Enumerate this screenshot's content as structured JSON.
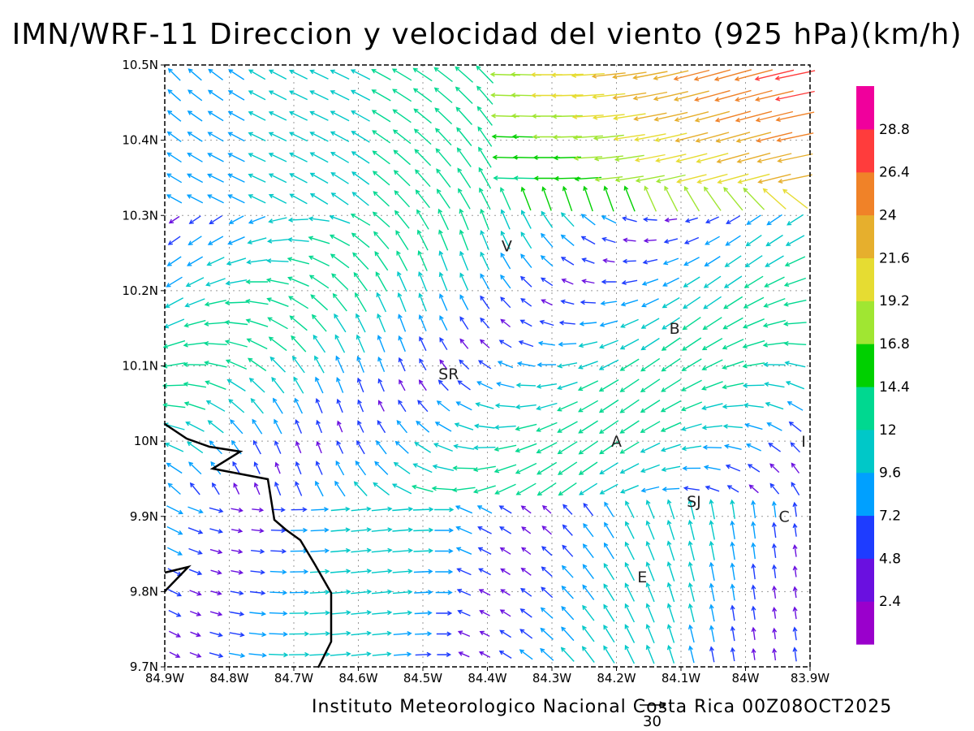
{
  "title": "IMN/WRF-11 Direccion y velocidad del viento (925 hPa)(km/h)",
  "footer": "Instituto Meteorologico Nacional Costa Rica 00Z08OCT2025",
  "reference_vector": {
    "label": "30",
    "speed_kmh": 30
  },
  "map": {
    "lon_range": [
      -84.9,
      -83.9
    ],
    "lat_range": [
      9.7,
      10.5
    ],
    "x_ticks": [
      "84.9W",
      "84.8W",
      "84.7W",
      "84.6W",
      "84.5W",
      "84.4W",
      "84.3W",
      "84.2W",
      "84.1W",
      "84W",
      "83.9W"
    ],
    "y_ticks": [
      "10.5N",
      "10.4N",
      "10.3N",
      "10.2N",
      "10.1N",
      "10N",
      "9.9N",
      "9.8N",
      "9.7N"
    ],
    "grid": "dotted",
    "places": [
      {
        "label": "V",
        "lon": -84.37,
        "lat": 10.26
      },
      {
        "label": "B",
        "lon": -84.11,
        "lat": 10.15
      },
      {
        "label": "SR",
        "lon": -84.46,
        "lat": 10.09
      },
      {
        "label": "A",
        "lon": -84.2,
        "lat": 10.0
      },
      {
        "label": "I",
        "lon": -83.91,
        "lat": 10.0
      },
      {
        "label": "SJ",
        "lon": -84.08,
        "lat": 9.92
      },
      {
        "label": "C",
        "lon": -83.94,
        "lat": 9.9
      },
      {
        "label": "E",
        "lon": -84.16,
        "lat": 9.82
      }
    ]
  },
  "colorbar": {
    "colors": [
      "#9a00cc",
      "#6a10e0",
      "#1e3cff",
      "#00a0ff",
      "#00c8c8",
      "#00d890",
      "#00d000",
      "#a0e632",
      "#e6dc32",
      "#e6af2d",
      "#f08228",
      "#ff3c3c",
      "#f0009c"
    ],
    "labels": [
      "2.4",
      "4.8",
      "7.2",
      "9.6",
      "12",
      "14.4",
      "16.8",
      "19.2",
      "21.6",
      "24",
      "26.4",
      "28.8"
    ]
  }
}
